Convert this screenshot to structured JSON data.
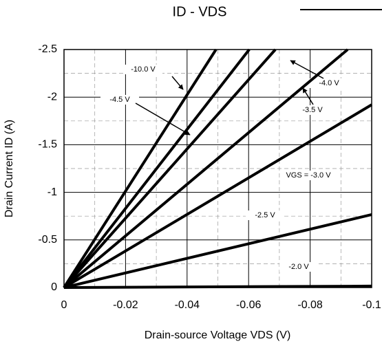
{
  "chart_data": {
    "type": "line",
    "title": "ID - VDS",
    "xlabel": "Drain-source Voltage VDS (V)",
    "ylabel": "Drain Current ID (A)",
    "xlim": [
      0,
      -0.1
    ],
    "ylim": [
      0,
      -2.5
    ],
    "xticks": [
      0,
      -0.02,
      -0.04,
      -0.06,
      -0.08,
      -0.1
    ],
    "yticks": [
      0,
      -0.5,
      -1,
      -1.5,
      -2,
      -2.5
    ],
    "xminorticks": [
      -0.01,
      -0.03,
      -0.05,
      -0.07,
      -0.09
    ],
    "yminorticks": [
      -0.25,
      -0.75,
      -1.25,
      -1.75,
      -2.25
    ],
    "grid": true,
    "series": [
      {
        "name": "-10.0 V",
        "color": "#000000",
        "x": [
          0,
          -0.0494
        ],
        "values": [
          0,
          -2.5
        ]
      },
      {
        "name": "-4.5 V",
        "color": "#000000",
        "x": [
          0,
          -0.0602
        ],
        "values": [
          0,
          -2.5
        ]
      },
      {
        "name": "-4.0 V",
        "color": "#000000",
        "x": [
          0,
          -0.0687
        ],
        "values": [
          0,
          -2.5
        ]
      },
      {
        "name": "-3.5 V",
        "color": "#000000",
        "x": [
          0,
          -0.0922
        ],
        "values": [
          0,
          -2.5
        ]
      },
      {
        "name": "VGS = -3.0 V",
        "color": "#000000",
        "x": [
          0,
          -0.1
        ],
        "values": [
          0,
          -1.92
        ]
      },
      {
        "name": "-2.5 V",
        "color": "#000000",
        "x": [
          0,
          -0.1
        ],
        "values": [
          0,
          -0.766
        ]
      },
      {
        "name": "-2.0 V",
        "color": "#000000",
        "x": [
          0,
          -0.1
        ],
        "values": [
          0,
          -0.015
        ]
      }
    ]
  }
}
